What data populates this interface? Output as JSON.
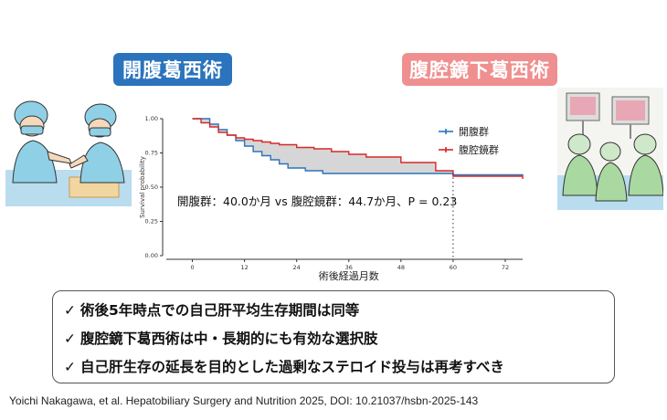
{
  "labels": {
    "open": "開腹葛西術",
    "laparoscopic": "腹腔鏡下葛西術"
  },
  "stats_text": "開腹群：40.0か月 vs 腹腔鏡群：44.7か月、P = 0.23",
  "summary": {
    "check_glyph": "✓",
    "items": [
      "術後5年時点での自己肝平均生存期間は同等",
      "腹腔鏡下葛西術は中・長期的にも有効な選択肢",
      "自己肝生存の延長を目的とした過剰なステロイド投与は再考すべき"
    ]
  },
  "citation": "Yoichi Nakagawa, et al. Hepatobiliary Surgery and Nutrition 2025, DOI: 10.21037/hsbn-2025-143",
  "colors": {
    "open": "#2b73bc",
    "laparoscopic": "#d62828",
    "ci_fill": "#c8c8c8",
    "open_badge": "#2b73bc",
    "lap_badge": "#ef8f8f"
  },
  "icons": {
    "left": "open-surgery-illustration",
    "right": "laparoscopic-surgery-illustration"
  },
  "chart_data": {
    "type": "line",
    "step": true,
    "xlabel": "術後経過月数",
    "ylabel": "Survival probability",
    "xlim": [
      -6,
      76
    ],
    "ylim": [
      0,
      1
    ],
    "xticks": [
      0,
      12,
      24,
      36,
      48,
      60,
      72
    ],
    "yticks": [
      0.0,
      0.25,
      0.5,
      0.75,
      1.0
    ],
    "ytick_labels": [
      "0.00",
      "0.25",
      "0.50",
      "0.75",
      "1.00"
    ],
    "grid": false,
    "legend_position": "top-right",
    "reference_x": 60,
    "series": [
      {
        "name": "開腹群",
        "color": "#2b73bc",
        "x": [
          0,
          4,
          6,
          8,
          10,
          12,
          14,
          16,
          18,
          20,
          22,
          26,
          30,
          60,
          76
        ],
        "y": [
          1.0,
          0.96,
          0.92,
          0.88,
          0.84,
          0.8,
          0.76,
          0.73,
          0.7,
          0.67,
          0.64,
          0.62,
          0.6,
          0.59,
          0.58
        ]
      },
      {
        "name": "腹腔鏡群",
        "color": "#d62828",
        "x": [
          0,
          2,
          4,
          6,
          8,
          10,
          12,
          14,
          16,
          18,
          20,
          24,
          28,
          32,
          36,
          40,
          48,
          56,
          60,
          76
        ],
        "y": [
          1.0,
          0.97,
          0.94,
          0.9,
          0.88,
          0.86,
          0.85,
          0.84,
          0.83,
          0.82,
          0.81,
          0.79,
          0.78,
          0.76,
          0.74,
          0.72,
          0.68,
          0.62,
          0.58,
          0.56
        ]
      }
    ]
  }
}
